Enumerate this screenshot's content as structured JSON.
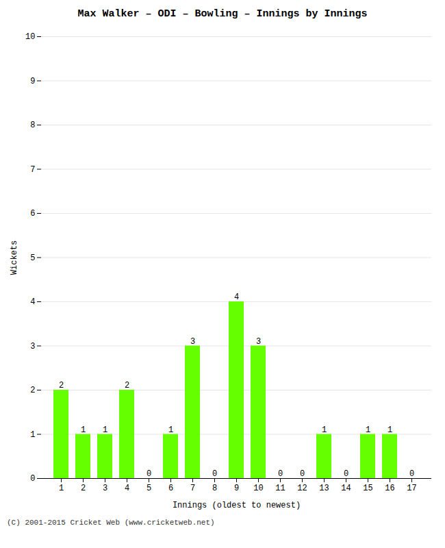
{
  "chart_data": {
    "type": "bar",
    "title": "Max Walker – ODI – Bowling – Innings by Innings",
    "xlabel": "Innings (oldest to newest)",
    "ylabel": "Wickets",
    "footer": "(C) 2001-2015 Cricket Web (www.cricketweb.net)",
    "categories": [
      1,
      2,
      3,
      4,
      5,
      6,
      7,
      8,
      9,
      10,
      11,
      12,
      13,
      14,
      15,
      16,
      17
    ],
    "values": [
      2,
      1,
      1,
      2,
      0,
      1,
      3,
      0,
      4,
      3,
      0,
      0,
      1,
      0,
      1,
      1,
      0
    ],
    "color": "#66ff00",
    "ylim": [
      0,
      10
    ],
    "yticks": [
      0,
      1,
      2,
      3,
      4,
      5,
      6,
      7,
      8,
      9,
      10
    ],
    "grid": true,
    "data_labels": true
  }
}
